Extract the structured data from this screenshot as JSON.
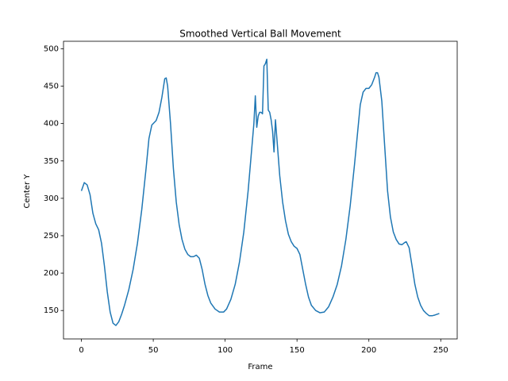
{
  "chart_data": {
    "type": "line",
    "title": "Smoothed Vertical Ball Movement",
    "x_label": "Frame",
    "y_label": "Center Y",
    "x": [
      0,
      2,
      4,
      6,
      8,
      10,
      12,
      14,
      16,
      18,
      20,
      22,
      24,
      26,
      28,
      30,
      33,
      36,
      39,
      42,
      45,
      47,
      49,
      52,
      54,
      56,
      58,
      59,
      60,
      62,
      64,
      66,
      68,
      70,
      72,
      74,
      76,
      78,
      80,
      82,
      84,
      86,
      88,
      90,
      93,
      96,
      99,
      101,
      104,
      107,
      110,
      113,
      116,
      118,
      120,
      121,
      122,
      123,
      124,
      125,
      126,
      127,
      128,
      129,
      130,
      131,
      132,
      133,
      134,
      135,
      136,
      138,
      140,
      142,
      144,
      146,
      148,
      150,
      152,
      154,
      156,
      158,
      160,
      163,
      166,
      169,
      172,
      175,
      178,
      181,
      184,
      187,
      190,
      192,
      194,
      196,
      198,
      200,
      202,
      204,
      205,
      206,
      207,
      209,
      211,
      213,
      215,
      217,
      219,
      221,
      223,
      225,
      226,
      228,
      230,
      232,
      234,
      236,
      238,
      240,
      242,
      244,
      246,
      249
    ],
    "series": [
      {
        "name": "Center Y",
        "color": "#1f77b4",
        "values": [
          310,
          321,
          318,
          305,
          280,
          266,
          258,
          240,
          210,
          175,
          148,
          133,
          130,
          135,
          145,
          157,
          178,
          205,
          240,
          285,
          340,
          380,
          398,
          404,
          415,
          435,
          460,
          461,
          450,
          400,
          340,
          295,
          265,
          245,
          232,
          225,
          222,
          222,
          224,
          220,
          205,
          185,
          170,
          160,
          152,
          148,
          148,
          152,
          165,
          185,
          215,
          255,
          310,
          355,
          400,
          437,
          395,
          410,
          415,
          415,
          413,
          477,
          480,
          486,
          418,
          415,
          405,
          390,
          362,
          405,
          380,
          330,
          295,
          270,
          252,
          242,
          236,
          233,
          225,
          205,
          185,
          168,
          157,
          150,
          147,
          148,
          155,
          168,
          185,
          210,
          245,
          290,
          345,
          385,
          425,
          442,
          447,
          447,
          452,
          462,
          468,
          468,
          462,
          430,
          370,
          310,
          275,
          255,
          245,
          239,
          238,
          241,
          242,
          234,
          210,
          185,
          168,
          157,
          150,
          146,
          143,
          143,
          144,
          146
        ]
      }
    ],
    "xlim": [
      -12.45,
      261.45
    ],
    "ylim": [
      112,
      510
    ],
    "xticks": [
      0,
      50,
      100,
      150,
      200,
      250
    ],
    "yticks": [
      150,
      200,
      250,
      300,
      350,
      400,
      450,
      500
    ]
  }
}
